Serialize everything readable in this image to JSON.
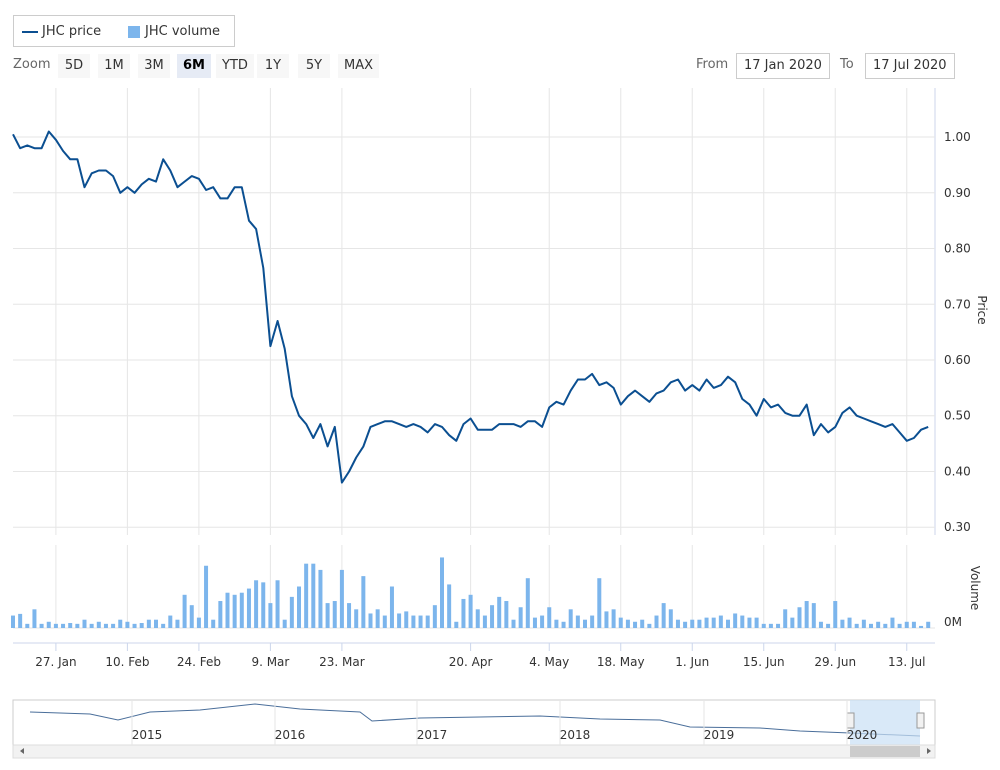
{
  "legend": {
    "items": [
      "JHC price",
      "JHC volume"
    ]
  },
  "toolbar": {
    "zoom_label": "Zoom",
    "buttons": [
      "5D",
      "1M",
      "3M",
      "6M",
      "YTD",
      "1Y",
      "5Y",
      "MAX"
    ],
    "selected": "6M",
    "from_label": "From",
    "from": "17 Jan 2020",
    "to_label": "To",
    "to": "17 Jul 2020"
  },
  "chart_data": {
    "type": "line",
    "categories": [
      null,
      null,
      null,
      null,
      null,
      null,
      "27. Jan",
      null,
      null,
      null,
      null,
      null,
      null,
      null,
      null,
      null,
      "10. Feb",
      null,
      null,
      null,
      null,
      null,
      null,
      null,
      null,
      null,
      "24. Feb",
      null,
      null,
      null,
      null,
      null,
      null,
      null,
      null,
      null,
      "9. Mar",
      null,
      null,
      null,
      null,
      null,
      null,
      null,
      null,
      null,
      "23. Mar",
      null,
      null,
      null,
      null,
      null,
      null,
      null,
      null,
      null,
      null,
      null,
      null,
      null,
      null,
      null,
      null,
      null,
      "20. Apr",
      null,
      null,
      null,
      null,
      null,
      null,
      null,
      null,
      null,
      null,
      "4. May",
      null,
      null,
      null,
      null,
      null,
      null,
      null,
      null,
      null,
      "18. May",
      null,
      null,
      null,
      null,
      null,
      null,
      null,
      null,
      null,
      "1. Jun",
      null,
      null,
      null,
      null,
      null,
      null,
      null,
      null,
      null,
      "15. Jun",
      null,
      null,
      null,
      null,
      null,
      null,
      null,
      null,
      null,
      "29. Jun",
      null,
      null,
      null,
      null,
      null,
      null,
      null,
      null,
      null,
      "13. Jul",
      null,
      null,
      null
    ],
    "series": [
      {
        "name": "JHC price",
        "color": "#0b4f91",
        "values": [
          1.005,
          0.98,
          0.985,
          0.98,
          0.98,
          1.01,
          0.995,
          0.975,
          0.96,
          0.96,
          0.91,
          0.935,
          0.94,
          0.94,
          0.93,
          0.9,
          0.91,
          0.9,
          0.915,
          0.925,
          0.92,
          0.96,
          0.94,
          0.91,
          0.92,
          0.93,
          0.925,
          0.905,
          0.91,
          0.89,
          0.89,
          0.91,
          0.91,
          0.85,
          0.835,
          0.765,
          0.625,
          0.67,
          0.62,
          0.535,
          0.5,
          0.485,
          0.46,
          0.485,
          0.445,
          0.48,
          0.38,
          0.4,
          0.425,
          0.445,
          0.48,
          0.485,
          0.49,
          0.49,
          0.485,
          0.48,
          0.485,
          0.48,
          0.47,
          0.485,
          0.48,
          0.465,
          0.455,
          0.485,
          0.495,
          0.475,
          0.475,
          0.475,
          0.485,
          0.485,
          0.485,
          0.48,
          0.49,
          0.49,
          0.48,
          0.515,
          0.525,
          0.52,
          0.545,
          0.565,
          0.565,
          0.575,
          0.555,
          0.56,
          0.55,
          0.52,
          0.535,
          0.545,
          0.535,
          0.525,
          0.54,
          0.545,
          0.56,
          0.565,
          0.545,
          0.555,
          0.545,
          0.565,
          0.55,
          0.555,
          0.57,
          0.56,
          0.53,
          0.52,
          0.5,
          0.53,
          0.515,
          0.52,
          0.505,
          0.5,
          0.5,
          0.52,
          0.465,
          0.485,
          0.47,
          0.48,
          0.505,
          0.515,
          0.5,
          0.495,
          0.49,
          0.485,
          0.48,
          0.485,
          0.47,
          0.455,
          0.46,
          0.475,
          0.48
        ]
      },
      {
        "name": "JHC volume",
        "color": "#7cb5ec",
        "type": "bar",
        "axis": "y2",
        "values": [
          0.3,
          0.34,
          0.1,
          0.45,
          0.1,
          0.15,
          0.1,
          0.1,
          0.12,
          0.1,
          0.2,
          0.1,
          0.15,
          0.1,
          0.1,
          0.2,
          0.15,
          0.1,
          0.12,
          0.2,
          0.2,
          0.1,
          0.3,
          0.2,
          0.8,
          0.55,
          0.25,
          1.5,
          0.2,
          0.65,
          0.85,
          0.8,
          0.85,
          0.95,
          1.15,
          1.1,
          0.6,
          1.15,
          0.2,
          0.75,
          1.0,
          1.55,
          1.55,
          1.4,
          0.6,
          0.65,
          1.4,
          0.6,
          0.45,
          1.25,
          0.35,
          0.45,
          0.3,
          1.0,
          0.35,
          0.4,
          0.3,
          0.3,
          0.3,
          0.55,
          1.7,
          1.05,
          0.15,
          0.7,
          0.8,
          0.45,
          0.3,
          0.55,
          0.75,
          0.65,
          0.2,
          0.5,
          1.2,
          0.25,
          0.3,
          0.5,
          0.2,
          0.15,
          0.45,
          0.3,
          0.2,
          0.3,
          1.2,
          0.4,
          0.45,
          0.25,
          0.2,
          0.15,
          0.2,
          0.1,
          0.3,
          0.6,
          0.45,
          0.2,
          0.15,
          0.2,
          0.2,
          0.25,
          0.25,
          0.3,
          0.2,
          0.35,
          0.3,
          0.25,
          0.25,
          0.1,
          0.1,
          0.1,
          0.45,
          0.25,
          0.5,
          0.65,
          0.6,
          0.15,
          0.1,
          0.65,
          0.2,
          0.25,
          0.1,
          0.2,
          0.1,
          0.15,
          0.1,
          0.25,
          0.1,
          0.15,
          0.15,
          0.05,
          0.15
        ]
      }
    ],
    "ylabel": "Price",
    "y2label": "Volume",
    "ylim": [
      0.286,
      1.088
    ],
    "yticks": [
      {
        "value": 0.3,
        "label": "0.30"
      },
      {
        "value": 0.4,
        "label": "0.40"
      },
      {
        "value": 0.5,
        "label": "0.50"
      },
      {
        "value": 0.6,
        "label": "0.60"
      },
      {
        "value": 0.7,
        "label": "0.70"
      },
      {
        "value": 0.8,
        "label": "0.80"
      },
      {
        "value": 0.9,
        "label": "0.90"
      },
      {
        "value": 1.0,
        "label": "1.00"
      }
    ],
    "y2lim": [
      0,
      2
    ],
    "y2ticks": [
      {
        "value": 0,
        "label": "0M"
      }
    ],
    "grid": true
  },
  "navigator": {
    "years": [
      "2015",
      "2016",
      "2017",
      "2018",
      "2019",
      "2020"
    ]
  }
}
